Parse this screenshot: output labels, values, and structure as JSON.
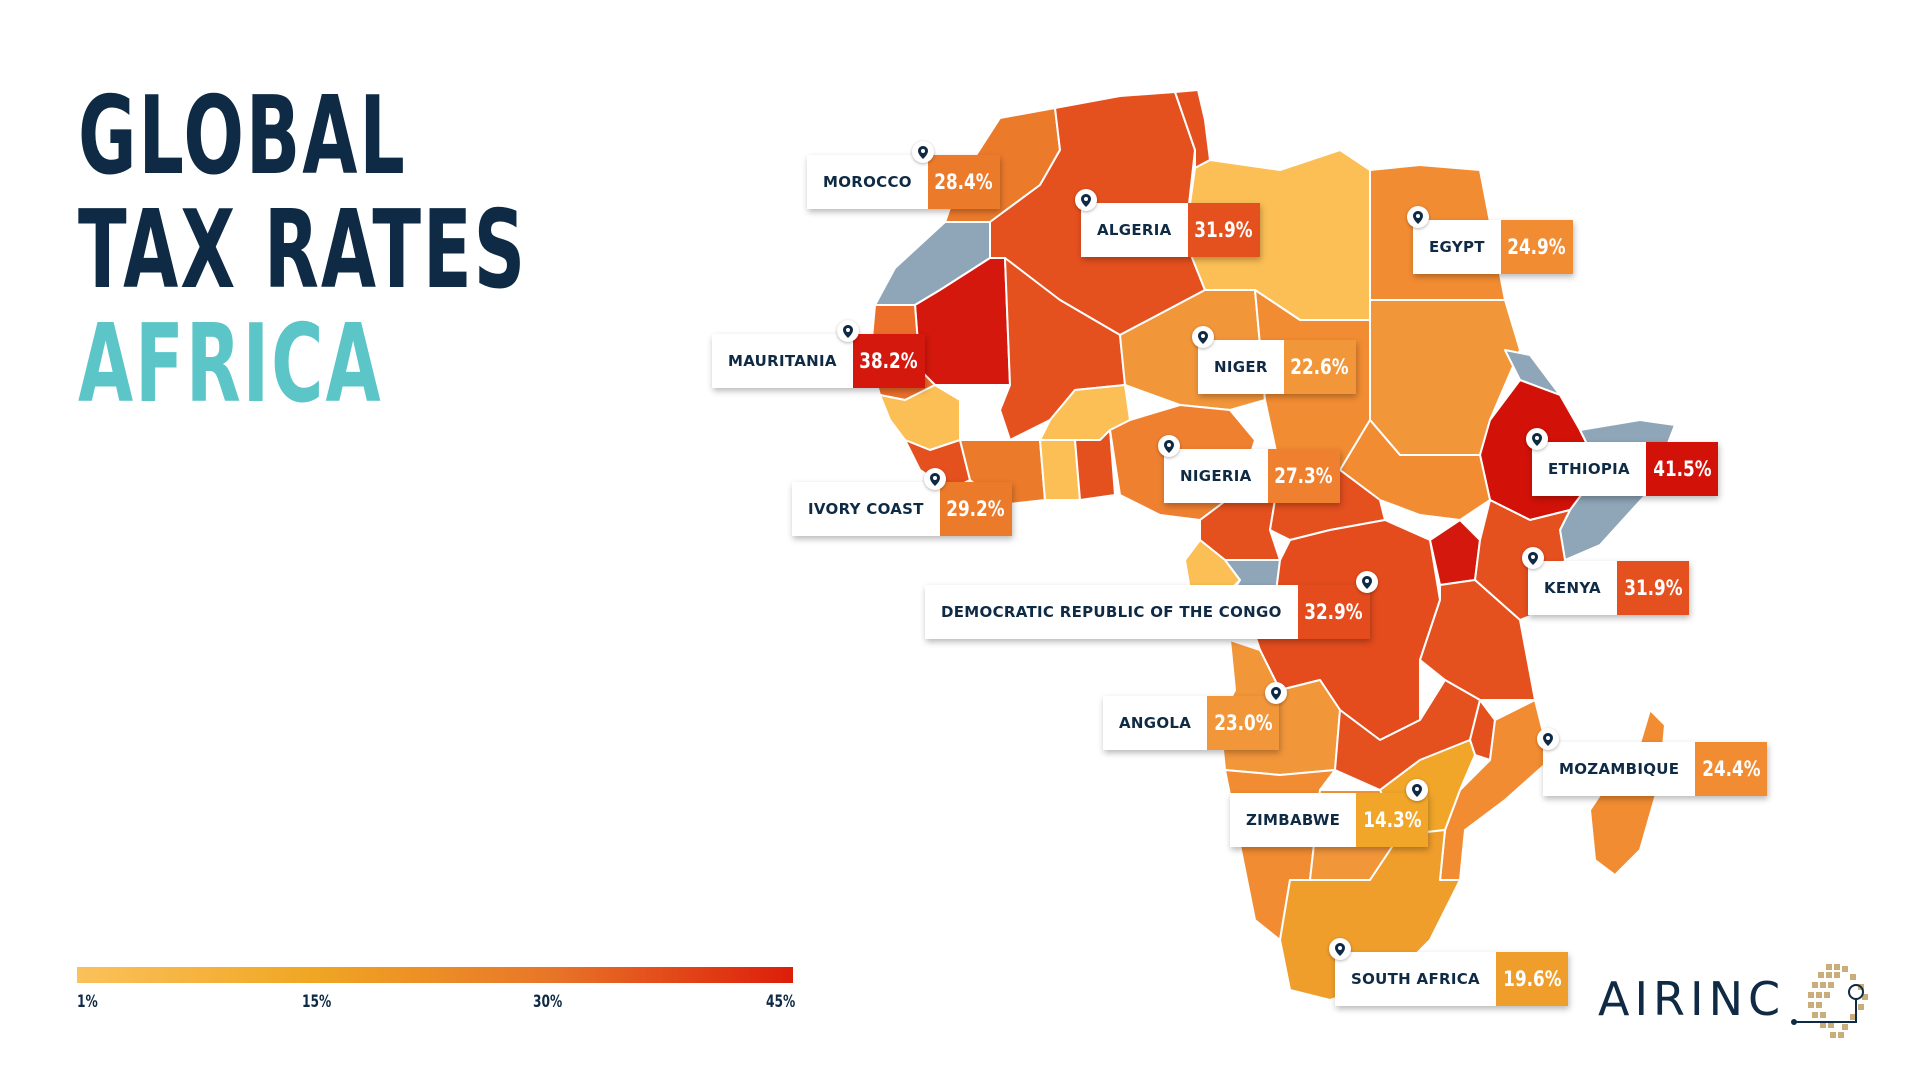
{
  "title": {
    "line1": "GLOBAL",
    "line2": "TAX RATES",
    "line3": "AFRICA"
  },
  "callouts": [
    {
      "country": "MOROCCO",
      "rate": "28.4%",
      "color": "#ec7a2b"
    },
    {
      "country": "ALGERIA",
      "rate": "31.9%",
      "color": "#e5501f"
    },
    {
      "country": "EGYPT",
      "rate": "24.9%",
      "color": "#f28c32"
    },
    {
      "country": "MAURITANIA",
      "rate": "38.2%",
      "color": "#d4180d"
    },
    {
      "country": "NIGER",
      "rate": "22.6%",
      "color": "#f2963a"
    },
    {
      "country": "NIGERIA",
      "rate": "27.3%",
      "color": "#ee8030"
    },
    {
      "country": "ETHIOPIA",
      "rate": "41.5%",
      "color": "#d21208"
    },
    {
      "country": "IVORY COAST",
      "rate": "29.2%",
      "color": "#ec7a2b"
    },
    {
      "country": "KENYA",
      "rate": "31.9%",
      "color": "#e5501f"
    },
    {
      "country": "DEMOCRATIC REPUBLIC OF THE CONGO",
      "rate": "32.9%",
      "color": "#e44c1d"
    },
    {
      "country": "ANGOLA",
      "rate": "23.0%",
      "color": "#f2963a"
    },
    {
      "country": "MOZAMBIQUE",
      "rate": "24.4%",
      "color": "#f28c32"
    },
    {
      "country": "ZIMBABWE",
      "rate": "14.3%",
      "color": "#f1a62a"
    },
    {
      "country": "SOUTH AFRICA",
      "rate": "19.6%",
      "color": "#f09e2b"
    }
  ],
  "legend": {
    "ticks": [
      "1%",
      "15%",
      "30%",
      "45%"
    ],
    "min": 1,
    "max": 45,
    "colors": [
      "#fbc15a",
      "#f0a623",
      "#e87628",
      "#dd1d0a"
    ]
  },
  "logo": {
    "text": "AIRINC"
  },
  "colors": {
    "navy": "#0f2a44",
    "teal": "#5cc5c8",
    "no_data": "#8fa5b8"
  }
}
